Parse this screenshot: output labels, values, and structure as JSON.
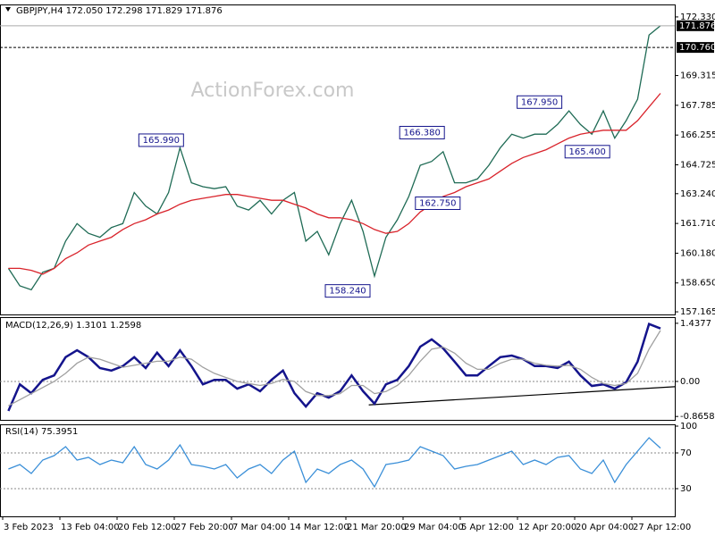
{
  "chart_data": [
    {
      "type": "line",
      "title": "GBPJPY,H4  172.050 172.298 171.829 171.876",
      "watermark": "ActionForex.com",
      "x": [
        -2,
        0,
        2,
        4,
        6,
        8,
        10,
        12,
        14,
        16,
        18,
        20,
        22,
        24,
        26,
        28,
        30,
        32,
        34,
        36,
        38,
        40,
        42,
        44,
        46,
        48,
        50,
        52,
        54,
        56,
        58,
        60,
        62,
        64,
        66,
        68,
        70,
        72,
        74,
        76,
        78,
        80,
        82,
        84,
        86,
        88,
        90,
        92,
        94,
        96,
        98,
        100,
        102,
        104,
        106,
        108,
        110,
        112
      ],
      "series": [
        {
          "color": "#1f6b55",
          "values": [
            159.4,
            158.5,
            158.3,
            159.2,
            159.4,
            160.8,
            161.7,
            161.2,
            161.0,
            161.5,
            161.7,
            163.3,
            162.6,
            162.2,
            163.3,
            165.6,
            163.8,
            163.6,
            163.5,
            163.6,
            162.6,
            162.4,
            162.9,
            162.2,
            162.9,
            163.3,
            160.8,
            161.3,
            160.1,
            161.7,
            162.9,
            161.3,
            159.0,
            161.0,
            161.9,
            163.1,
            164.7,
            164.9,
            165.4,
            163.8,
            163.8,
            164.0,
            164.7,
            165.6,
            166.3,
            166.1,
            166.3,
            166.3,
            166.8,
            167.5,
            166.8,
            166.3,
            167.5,
            166.1,
            167.0,
            168.1,
            171.4,
            171.876
          ]
        },
        {
          "color": "#d9232b",
          "values": [
            159.4,
            159.4,
            159.3,
            159.1,
            159.4,
            159.9,
            160.2,
            160.6,
            160.8,
            161.0,
            161.4,
            161.7,
            161.9,
            162.2,
            162.4,
            162.7,
            162.9,
            163.0,
            163.1,
            163.2,
            163.2,
            163.1,
            163.0,
            162.9,
            162.9,
            162.7,
            162.5,
            162.2,
            162.0,
            162.0,
            161.9,
            161.7,
            161.4,
            161.2,
            161.3,
            161.7,
            162.3,
            162.7,
            163.1,
            163.3,
            163.6,
            163.8,
            164.0,
            164.4,
            164.8,
            165.1,
            165.3,
            165.5,
            165.8,
            166.1,
            166.3,
            166.4,
            166.5,
            166.5,
            166.5,
            167.0,
            167.7,
            168.4
          ]
        }
      ],
      "xlim": [
        -3.47,
        114.5
      ],
      "ylim": [
        157.03,
        172.97
      ],
      "yticks": [
        {
          "value": 172.33,
          "label": "172.330"
        },
        169.315,
        167.785,
        166.255,
        164.725,
        {
          "value": 163.24,
          "label": "163.240"
        },
        {
          "value": 161.71,
          "label": "161.710"
        },
        {
          "value": 160.18,
          "label": "160.180"
        },
        {
          "value": 158.65,
          "label": "158.650"
        },
        157.165
      ],
      "last_price": 171.876,
      "levels": [
        {
          "value": 170.76,
          "label": "170.760"
        }
      ],
      "annotations": [
        {
          "text": "165.990",
          "x": 28.3,
          "value": 165.99
        },
        {
          "text": "166.380",
          "x": 75,
          "value": 166.38
        },
        {
          "text": "162.750",
          "x": 76.5,
          "value": 162.75
        },
        {
          "text": "158.240",
          "x": 62,
          "value": 158.24
        },
        {
          "text": "167.950",
          "x": 96,
          "value": 167.95
        },
        {
          "text": "165.400",
          "x": 100,
          "value": 165.4
        }
      ]
    },
    {
      "type": "line",
      "title": "MACD(12,26,9) 1.3101 1.2598",
      "x": [
        -2,
        0,
        2,
        4,
        6,
        8,
        10,
        12,
        14,
        16,
        18,
        20,
        22,
        24,
        26,
        28,
        30,
        32,
        34,
        36,
        38,
        40,
        42,
        44,
        46,
        48,
        50,
        52,
        54,
        56,
        58,
        60,
        62,
        64,
        66,
        68,
        70,
        72,
        74,
        76,
        78,
        80,
        82,
        84,
        86,
        88,
        90,
        92,
        94,
        96,
        98,
        100,
        102,
        104,
        106,
        108,
        110,
        112
      ],
      "series": [
        {
          "color": "#14148c",
          "values": [
            -0.73,
            -0.07,
            -0.29,
            0.04,
            0.15,
            0.6,
            0.77,
            0.6,
            0.33,
            0.27,
            0.38,
            0.6,
            0.33,
            0.71,
            0.38,
            0.77,
            0.38,
            -0.07,
            0.04,
            0.04,
            -0.18,
            -0.07,
            -0.24,
            0.04,
            0.27,
            -0.29,
            -0.62,
            -0.29,
            -0.4,
            -0.24,
            0.15,
            -0.24,
            -0.55,
            -0.07,
            0.04,
            0.38,
            0.86,
            1.04,
            0.82,
            0.49,
            0.15,
            0.15,
            0.38,
            0.6,
            0.64,
            0.55,
            0.38,
            0.38,
            0.33,
            0.49,
            0.15,
            -0.11,
            -0.07,
            -0.18,
            -0.02,
            0.49,
            1.42,
            1.3101
          ]
        },
        {
          "color": "#a0a0a0",
          "values": [
            -0.6,
            -0.45,
            -0.3,
            -0.15,
            0.0,
            0.2,
            0.45,
            0.6,
            0.55,
            0.45,
            0.35,
            0.4,
            0.45,
            0.5,
            0.5,
            0.6,
            0.55,
            0.35,
            0.2,
            0.1,
            0.0,
            -0.05,
            -0.1,
            -0.05,
            0.05,
            0.0,
            -0.25,
            -0.35,
            -0.35,
            -0.3,
            -0.1,
            -0.1,
            -0.3,
            -0.25,
            -0.1,
            0.15,
            0.5,
            0.8,
            0.85,
            0.7,
            0.45,
            0.3,
            0.3,
            0.45,
            0.55,
            0.55,
            0.45,
            0.4,
            0.38,
            0.4,
            0.3,
            0.1,
            -0.05,
            -0.1,
            -0.05,
            0.2,
            0.8,
            1.2598
          ]
        }
      ],
      "xlim": [
        -3.47,
        114.5
      ],
      "ylim": [
        -0.95,
        1.59
      ],
      "yticks": [
        1.4377,
        {
          "value": 0,
          "label": "0.00"
        },
        -0.8658
      ],
      "levels": [
        0
      ],
      "trendline": {
        "x": [
          61,
          114.5
        ],
        "values": [
          -0.58,
          -0.13
        ]
      }
    },
    {
      "type": "line",
      "title": "RSI(14) 75.3951",
      "x": [
        -2,
        0,
        2,
        4,
        6,
        8,
        10,
        12,
        14,
        16,
        18,
        20,
        22,
        24,
        26,
        28,
        30,
        32,
        34,
        36,
        38,
        40,
        42,
        44,
        46,
        48,
        50,
        52,
        54,
        56,
        58,
        60,
        62,
        64,
        66,
        68,
        70,
        72,
        74,
        76,
        78,
        80,
        82,
        84,
        86,
        88,
        90,
        92,
        94,
        96,
        98,
        100,
        102,
        104,
        106,
        108,
        110,
        112
      ],
      "series": [
        {
          "color": "#3a8fd8",
          "values": [
            52,
            57,
            47,
            62,
            67,
            77,
            62,
            65,
            57,
            62,
            59,
            77,
            57,
            52,
            62,
            79,
            57,
            55,
            52,
            57,
            42,
            52,
            57,
            47,
            62,
            72,
            37,
            52,
            47,
            57,
            62,
            52,
            32,
            57,
            59,
            62,
            77,
            72,
            67,
            52,
            55,
            57,
            62,
            67,
            72,
            57,
            62,
            57,
            65,
            67,
            52,
            47,
            62,
            37,
            57,
            72,
            87,
            75.3951
          ]
        }
      ],
      "xlim": [
        -3.47,
        114.5
      ],
      "ylim": [
        -1,
        102
      ],
      "yticks": [
        100,
        70,
        30
      ],
      "levels": [
        70,
        30
      ],
      "xticks": [
        {
          "value": -3,
          "label": "3 Feb 2023"
        },
        {
          "value": 7,
          "label": "13 Feb 04:00"
        },
        {
          "value": 17,
          "label": "20 Feb 12:00"
        },
        {
          "value": 27,
          "label": "27 Feb 20:00"
        },
        {
          "value": 37,
          "label": "7 Mar 04:00"
        },
        {
          "value": 47,
          "label": "14 Mar 12:00"
        },
        {
          "value": 57,
          "label": "21 Mar 20:00"
        },
        {
          "value": 67,
          "label": "29 Mar 04:00"
        },
        {
          "value": 77,
          "label": "5 Apr 12:00"
        },
        {
          "value": 87,
          "label": "12 Apr 20:00"
        },
        {
          "value": 97,
          "label": "20 Apr 04:00"
        },
        {
          "value": 107,
          "label": "27 Apr 12:00"
        }
      ]
    }
  ]
}
